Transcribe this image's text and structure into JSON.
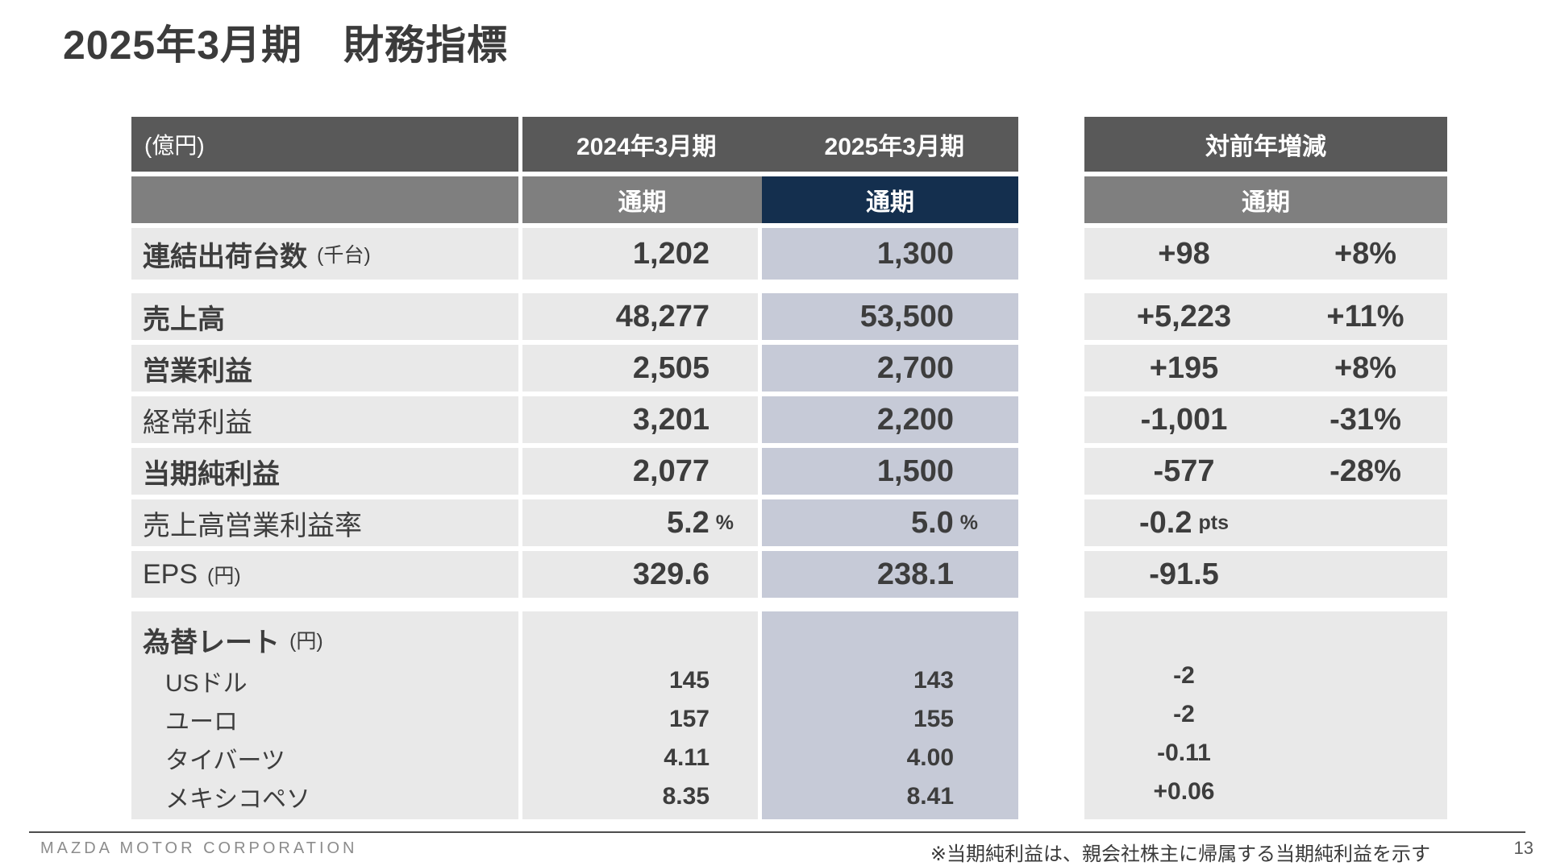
{
  "title": "2025年3月期　財務指標",
  "colors": {
    "header_dark": "#595959",
    "header_gray": "#7f7f7f",
    "accent_navy": "#142f4e",
    "cell_gray": "#e9e9e9",
    "cell_highlight": "#c6cad7",
    "text": "#3d3d3d"
  },
  "main_table": {
    "unit_header": "(億円)",
    "year_cols": [
      "2024年3月期",
      "2025年3月期"
    ],
    "period": "通期",
    "rows": [
      {
        "label": "連結出荷台数",
        "label_unit": "(千台)",
        "fy2024": "1,202",
        "fy2025": "1,300"
      },
      {
        "label": "売上高",
        "fy2024": "48,277",
        "fy2025": "53,500"
      },
      {
        "label": "営業利益",
        "fy2024": "2,505",
        "fy2025": "2,700"
      },
      {
        "label": "経常利益",
        "fy2024": "3,201",
        "fy2025": "2,200"
      },
      {
        "label": "当期純利益",
        "fy2024": "2,077",
        "fy2025": "1,500"
      },
      {
        "label": "売上高営業利益率",
        "fy2024": "5.2",
        "fy2025": "5.0",
        "value_unit": "%"
      },
      {
        "label": "EPS",
        "label_unit": "(円)",
        "fy2024": "329.6",
        "fy2025": "238.1"
      }
    ],
    "fx": {
      "label": "為替レート",
      "label_unit": "(円)",
      "rows": [
        {
          "label": "USドル",
          "fy2024": "145",
          "fy2025": "143"
        },
        {
          "label": "ユーロ",
          "fy2024": "157",
          "fy2025": "155"
        },
        {
          "label": "タイバーツ",
          "fy2024": "4.11",
          "fy2025": "4.00"
        },
        {
          "label": "メキシコペソ",
          "fy2024": "8.35",
          "fy2025": "8.41"
        }
      ]
    }
  },
  "delta_table": {
    "header": "対前年増減",
    "period": "通期",
    "rows": [
      {
        "change": "+98",
        "pct": "+8%"
      },
      {
        "change": "+5,223",
        "pct": "+11%"
      },
      {
        "change": "+195",
        "pct": "+8%"
      },
      {
        "change": "-1,001",
        "pct": "-31%"
      },
      {
        "change": "-577",
        "pct": "-28%"
      },
      {
        "change": "-0.2",
        "unit": "pts",
        "pct": ""
      },
      {
        "change": "-91.5",
        "pct": ""
      }
    ],
    "fx_rows": [
      "-2",
      "-2",
      "-0.11",
      "+0.06"
    ]
  },
  "footer": {
    "company": "MAZDA MOTOR CORPORATION",
    "note": "※当期純利益は、親会社株主に帰属する当期純利益を示す",
    "page": "13"
  }
}
